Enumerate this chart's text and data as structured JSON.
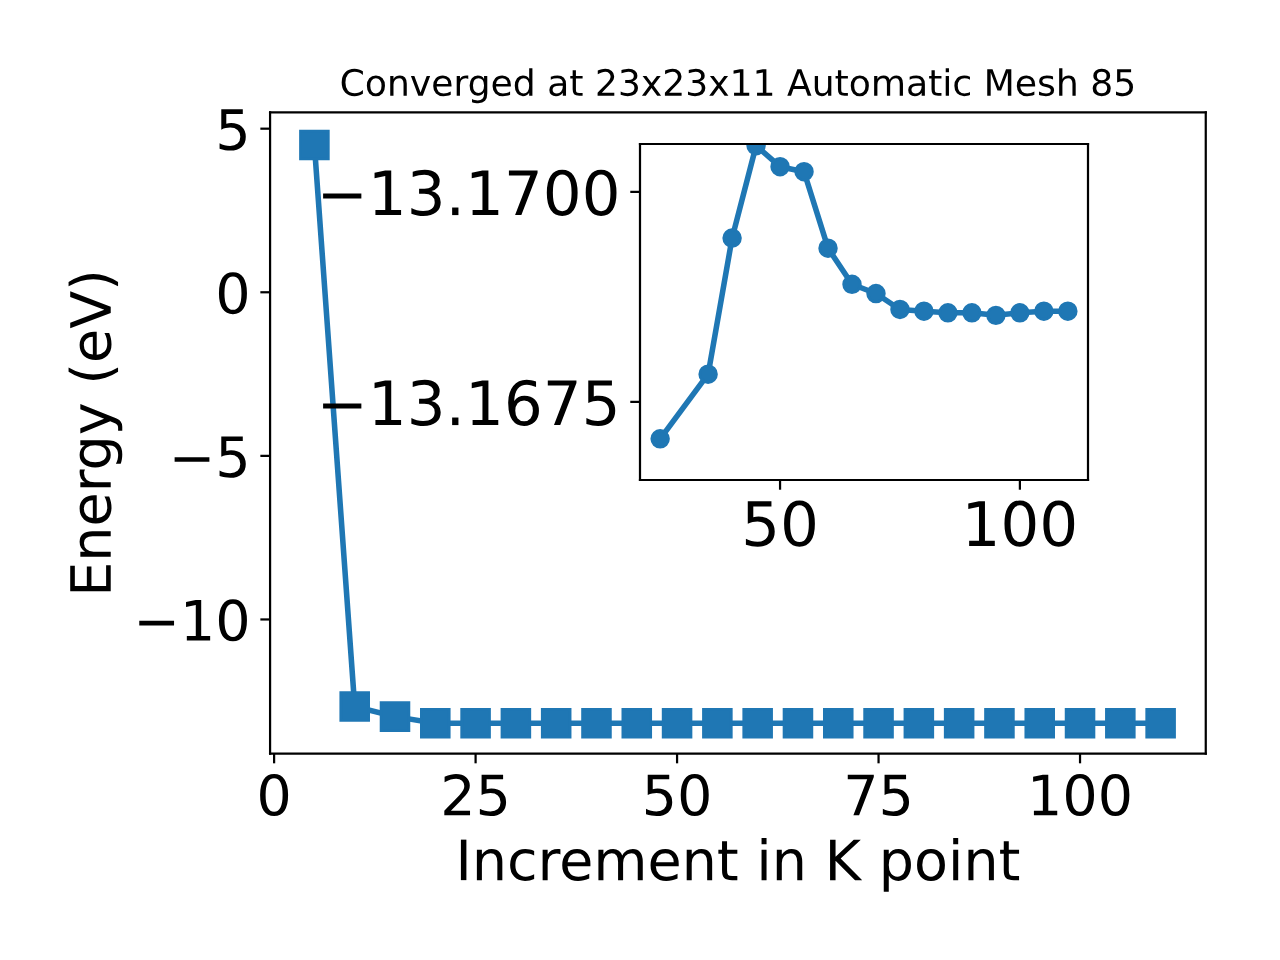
{
  "chart_data": [
    {
      "type": "line",
      "title": "Converged at 23x23x11 Automatic Mesh 85",
      "xlabel": "Increment in K point",
      "ylabel": "Energy (eV)",
      "x": [
        5,
        10,
        15,
        20,
        25,
        30,
        35,
        40,
        45,
        50,
        55,
        60,
        65,
        70,
        75,
        80,
        85,
        90,
        95,
        100,
        105,
        110
      ],
      "series": [
        {
          "color": "#1f77b4",
          "values": [
            4.5,
            -12.66,
            -12.97,
            -13.17,
            -13.17,
            -13.17,
            -13.17,
            -13.17,
            -13.17,
            -13.17,
            -13.17,
            -13.17,
            -13.17,
            -13.17,
            -13.17,
            -13.17,
            -13.17,
            -13.17,
            -13.17,
            -13.17,
            -13.17,
            -13.17
          ]
        }
      ],
      "xlim": [
        -0.5,
        115.6
      ],
      "ylim": [
        -14.1,
        5.5
      ],
      "xticks": [
        0,
        25,
        50,
        75,
        100
      ],
      "yticks": [
        {
          "value": -10,
          "label": "−10"
        },
        {
          "value": -5,
          "label": "−5"
        },
        0,
        5
      ],
      "marker": "square",
      "line_style": "solid",
      "grid": false
    },
    {
      "type": "line",
      "x": [
        25,
        35,
        40,
        45,
        50,
        55,
        60,
        65,
        70,
        75,
        80,
        85,
        90,
        95,
        100,
        105,
        110
      ],
      "series": [
        {
          "color": "#1f77b4",
          "values": [
            -13.16706,
            -13.16783,
            -13.16945,
            -13.17055,
            -13.1703,
            -13.17024,
            -13.16933,
            -13.1689,
            -13.16879,
            -13.1686,
            -13.16858,
            -13.16856,
            -13.16856,
            -13.16853,
            -13.16856,
            -13.16858,
            -13.16858
          ]
        }
      ],
      "xlim": [
        20.8,
        114.2
      ],
      "ylim": [
        -13.16657,
        -13.17057
      ],
      "xticks": [
        50,
        100
      ],
      "yticks": [
        {
          "value": -13.17,
          "label": "−13.1700"
        },
        {
          "value": -13.1675,
          "label": "−13.1675"
        }
      ],
      "marker": "circle",
      "line_style": "solid",
      "grid": false
    }
  ]
}
